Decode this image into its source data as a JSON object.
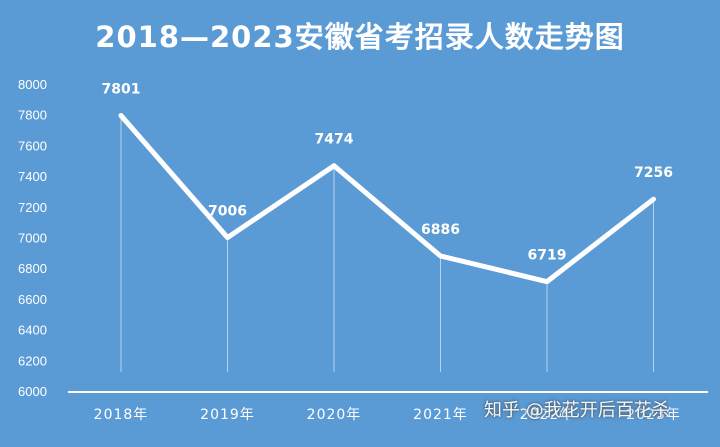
{
  "chart_data": {
    "type": "line",
    "title": "2018—2023安徽省考招录人数走势图",
    "categories": [
      "2018年",
      "2019年",
      "2020年",
      "2021年",
      "2022年",
      "2023年"
    ],
    "series": [
      {
        "values": [
          7801,
          7006,
          7474,
          6886,
          6719,
          7256
        ]
      }
    ],
    "ylim": [
      6000,
      8000
    ],
    "yticks": [
      6000,
      6200,
      6400,
      6600,
      6800,
      7000,
      7200,
      7400,
      7600,
      7800,
      8000
    ],
    "grid": false,
    "data_labels": true
  },
  "colors": {
    "background": "#5b9bd5",
    "line": "#ffffff",
    "text": "#ffffff"
  },
  "watermark": "知乎 @我花开后百花杀"
}
